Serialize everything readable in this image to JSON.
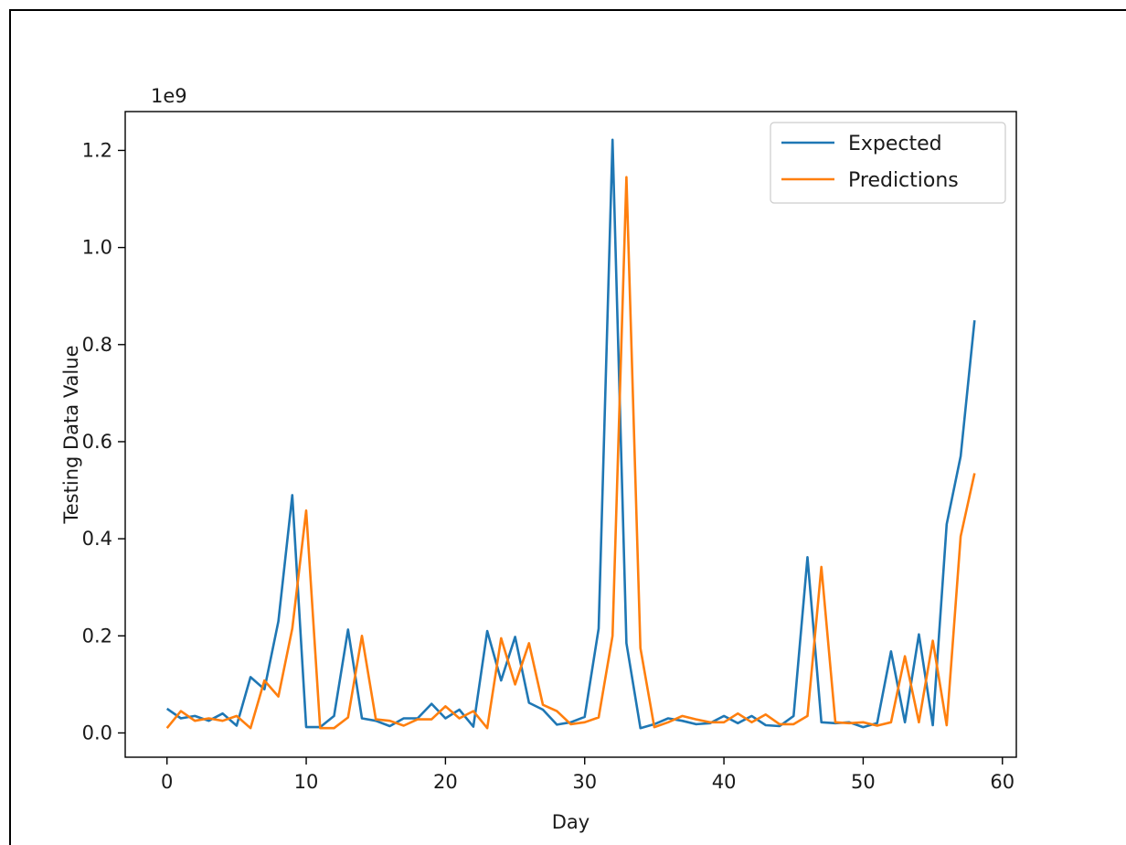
{
  "chart_data": {
    "type": "line",
    "xlabel": "Day",
    "ylabel": "Testing Data Value",
    "y_scale_label": "1e9",
    "xlim": [
      -3,
      61
    ],
    "ylim": [
      -0.05,
      1.28
    ],
    "xticks": [
      0,
      10,
      20,
      30,
      40,
      50,
      60
    ],
    "yticks": [
      0.0,
      0.2,
      0.4,
      0.6,
      0.8,
      1.0,
      1.2
    ],
    "ytick_labels": [
      "0.0",
      "0.2",
      "0.4",
      "0.6",
      "0.8",
      "1.0",
      "1.2"
    ],
    "grid": false,
    "legend_position": "top-right",
    "colors": {
      "expected": "#1f77b4",
      "predictions": "#ff7f0e"
    },
    "series": [
      {
        "name": "Expected",
        "color": "#1f77b4",
        "x": [
          0,
          1,
          2,
          3,
          4,
          5,
          6,
          7,
          8,
          9,
          10,
          11,
          12,
          13,
          14,
          15,
          16,
          17,
          18,
          19,
          20,
          21,
          22,
          23,
          24,
          25,
          26,
          27,
          28,
          29,
          30,
          31,
          32,
          33,
          34,
          35,
          36,
          37,
          38,
          39,
          40,
          41,
          42,
          43,
          44,
          45,
          46,
          47,
          48,
          49,
          50,
          51,
          52,
          53,
          54,
          55,
          56,
          57,
          58
        ],
        "values": [
          0.05,
          0.03,
          0.035,
          0.025,
          0.04,
          0.015,
          0.115,
          0.09,
          0.23,
          0.49,
          0.012,
          0.012,
          0.035,
          0.213,
          0.03,
          0.025,
          0.014,
          0.03,
          0.03,
          0.06,
          0.03,
          0.048,
          0.013,
          0.21,
          0.108,
          0.198,
          0.062,
          0.048,
          0.017,
          0.022,
          0.033,
          0.215,
          1.222,
          0.185,
          0.01,
          0.018,
          0.03,
          0.025,
          0.018,
          0.02,
          0.035,
          0.02,
          0.035,
          0.016,
          0.014,
          0.035,
          0.362,
          0.022,
          0.02,
          0.022,
          0.012,
          0.02,
          0.168,
          0.022,
          0.203,
          0.016,
          0.43,
          0.57,
          0.85
        ]
      },
      {
        "name": "Predictions",
        "color": "#ff7f0e",
        "x": [
          0,
          1,
          2,
          3,
          4,
          5,
          6,
          7,
          8,
          9,
          10,
          11,
          12,
          13,
          14,
          15,
          16,
          17,
          18,
          19,
          20,
          21,
          22,
          23,
          24,
          25,
          26,
          27,
          28,
          29,
          30,
          31,
          32,
          33,
          34,
          35,
          36,
          37,
          38,
          39,
          40,
          41,
          42,
          43,
          44,
          45,
          46,
          47,
          48,
          49,
          50,
          51,
          52,
          53,
          54,
          55,
          56,
          57,
          58
        ],
        "values": [
          0.01,
          0.045,
          0.025,
          0.03,
          0.025,
          0.035,
          0.01,
          0.108,
          0.075,
          0.215,
          0.458,
          0.01,
          0.01,
          0.032,
          0.2,
          0.028,
          0.025,
          0.015,
          0.028,
          0.028,
          0.055,
          0.03,
          0.045,
          0.01,
          0.195,
          0.1,
          0.185,
          0.058,
          0.045,
          0.018,
          0.022,
          0.032,
          0.2,
          1.145,
          0.175,
          0.012,
          0.022,
          0.035,
          0.028,
          0.022,
          0.022,
          0.04,
          0.022,
          0.038,
          0.018,
          0.018,
          0.035,
          0.342,
          0.022,
          0.02,
          0.022,
          0.015,
          0.022,
          0.158,
          0.022,
          0.19,
          0.016,
          0.405,
          0.535
        ]
      }
    ]
  }
}
